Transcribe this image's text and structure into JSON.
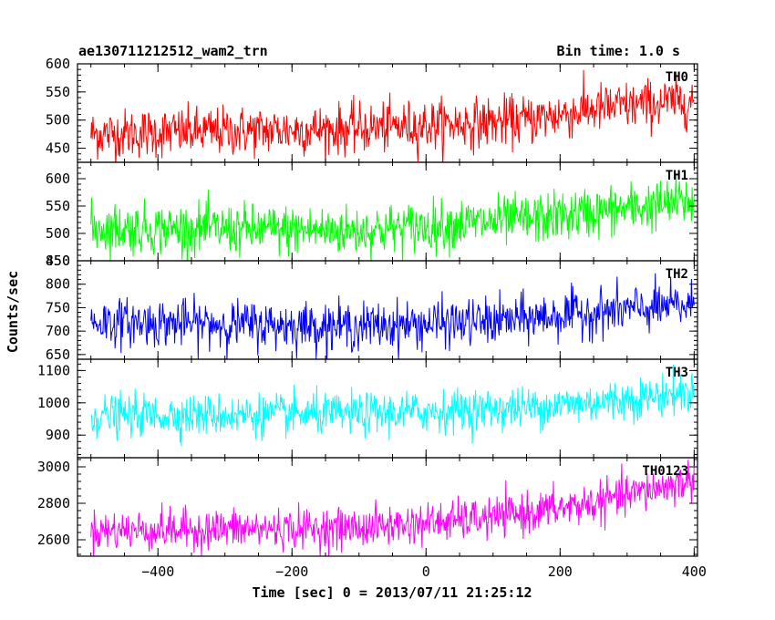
{
  "header": {
    "title": "ae130711212512_wam2_trn",
    "bin_time": "Bin time: 1.0 s"
  },
  "chart_data": {
    "type": "line",
    "xlabel": "Time [sec] 0 = 2013/07/11 21:25:12",
    "ylabel": "Counts/sec",
    "xlim": [
      -520,
      405
    ],
    "x_range": [
      -500,
      400
    ],
    "x_step": 1.0,
    "x_ticks": [
      -400,
      -200,
      0,
      200,
      400
    ],
    "x_tick_labels": [
      "−400",
      "−200",
      "0",
      "200",
      "400"
    ],
    "panels": [
      {
        "label": "TH0",
        "color": "#ff0000",
        "ylim": [
          425,
          600
        ],
        "y_ticks": [
          450,
          500,
          550,
          600
        ],
        "y_tick_labels": [
          "450",
          "500",
          "550",
          "600"
        ],
        "trend": [
          [
            -500,
            475
          ],
          [
            -100,
            485
          ],
          [
            150,
            500
          ],
          [
            250,
            520
          ],
          [
            400,
            535
          ]
        ],
        "noise": 22
      },
      {
        "label": "TH1",
        "color": "#00ff00",
        "ylim": [
          450,
          630
        ],
        "y_ticks": [
          450,
          500,
          550,
          600
        ],
        "y_tick_labels": [
          "450",
          "500",
          "550",
          "600"
        ],
        "trend": [
          [
            -500,
            510
          ],
          [
            -100,
            505
          ],
          [
            150,
            525
          ],
          [
            300,
            545
          ],
          [
            400,
            560
          ]
        ],
        "noise": 23
      },
      {
        "label": "TH2",
        "color": "#0000ff",
        "ylim": [
          640,
          850
        ],
        "y_ticks": [
          650,
          700,
          750,
          800,
          850
        ],
        "y_tick_labels": [
          "650",
          "700",
          "750",
          "800",
          "850"
        ],
        "trend": [
          [
            -500,
            720
          ],
          [
            -100,
            710
          ],
          [
            100,
            720
          ],
          [
            250,
            740
          ],
          [
            400,
            755
          ]
        ],
        "noise": 25
      },
      {
        "label": "TH3",
        "color": "#00ffff",
        "ylim": [
          830,
          1135
        ],
        "y_ticks": [
          900,
          1000,
          1100
        ],
        "y_tick_labels": [
          "900",
          "1000",
          "1100"
        ],
        "trend": [
          [
            -500,
            960
          ],
          [
            -100,
            965
          ],
          [
            150,
            985
          ],
          [
            300,
            1010
          ],
          [
            400,
            1035
          ]
        ],
        "noise": 32
      },
      {
        "label": "TH0123",
        "color": "#ff00ff",
        "ylim": [
          2510,
          3050
        ],
        "y_ticks": [
          2600,
          2800,
          3000
        ],
        "y_tick_labels": [
          "2600",
          "2800",
          "3000"
        ],
        "trend": [
          [
            -500,
            2650
          ],
          [
            -100,
            2665
          ],
          [
            100,
            2720
          ],
          [
            250,
            2800
          ],
          [
            400,
            2930
          ]
        ],
        "noise": 55
      }
    ]
  }
}
